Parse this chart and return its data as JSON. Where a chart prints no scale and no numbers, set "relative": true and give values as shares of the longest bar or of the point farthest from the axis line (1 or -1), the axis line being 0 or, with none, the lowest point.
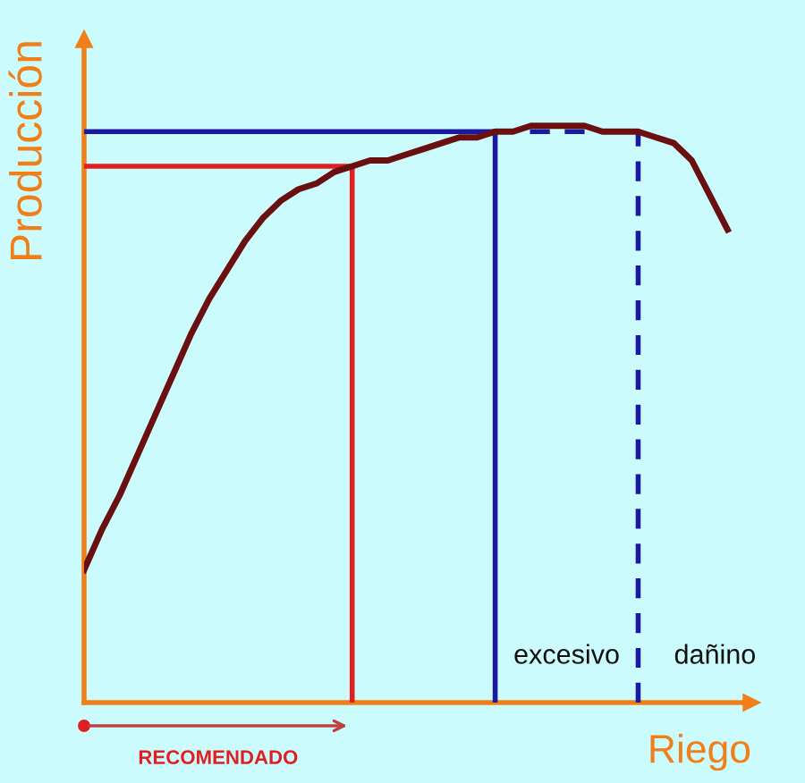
{
  "chart_data": {
    "type": "line",
    "relative": true,
    "xlabel": "Riego",
    "ylabel": "Producción",
    "categories": [
      null,
      null,
      null,
      null,
      null,
      null,
      null,
      null,
      null,
      null,
      null,
      null,
      null,
      null,
      null,
      null,
      null,
      null,
      null,
      null,
      null,
      null,
      null,
      null,
      null,
      null,
      null,
      null,
      null,
      null,
      null,
      null,
      null,
      null,
      null,
      null,
      null
    ],
    "series": [
      {
        "color": "#6b1010",
        "values": [
          0.23,
          0.3,
          0.36,
          0.43,
          0.5,
          0.57,
          0.64,
          0.7,
          0.75,
          0.8,
          0.84,
          0.87,
          0.89,
          0.9,
          0.92,
          0.93,
          0.94,
          0.94,
          0.95,
          0.96,
          0.97,
          0.98,
          0.98,
          0.99,
          0.99,
          1.0,
          1.0,
          1.0,
          1.0,
          0.99,
          0.99,
          0.99,
          0.98,
          0.97,
          0.94,
          0.88,
          0.82
        ]
      }
    ],
    "ref_lines": [
      {
        "axis": "y",
        "value": 0.93,
        "color": "#e02020",
        "line_style": "solid"
      },
      {
        "axis": "y",
        "value": 0.99,
        "color": "#1a1aa0",
        "line_style": "solid"
      },
      {
        "axis": "y",
        "value": 0.99,
        "color": "#1a1aa0",
        "line_style": "dashed"
      }
    ],
    "annotations": [
      "excesivo",
      "dañino",
      "RECOMENDADO"
    ],
    "legend": false,
    "marker": "none",
    "line_style": "solid"
  }
}
